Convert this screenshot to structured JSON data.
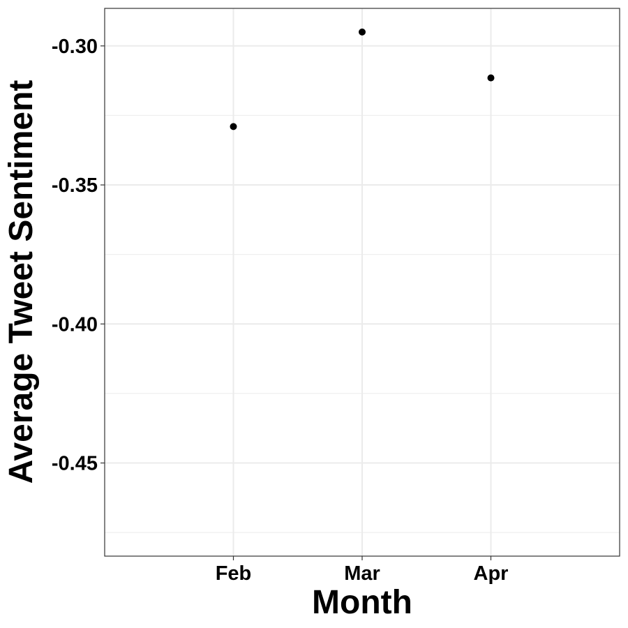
{
  "chart_data": {
    "type": "scatter",
    "title": "",
    "xlabel": "Month",
    "ylabel": "Average Tweet Sentiment",
    "categories": [
      "Feb",
      "Mar",
      "Apr"
    ],
    "values": [
      -0.329,
      -0.295,
      -0.3115
    ],
    "ylim": [
      -0.4835,
      -0.2865
    ],
    "yticks": [
      -0.3,
      -0.35,
      -0.4,
      -0.45
    ],
    "ytick_labels": [
      "-0.30",
      "-0.35",
      "-0.40",
      "-0.45"
    ],
    "grid": true,
    "legend": "none",
    "colors": {
      "point": "#000000",
      "grid": "#ebebeb",
      "border": "#333333"
    }
  }
}
